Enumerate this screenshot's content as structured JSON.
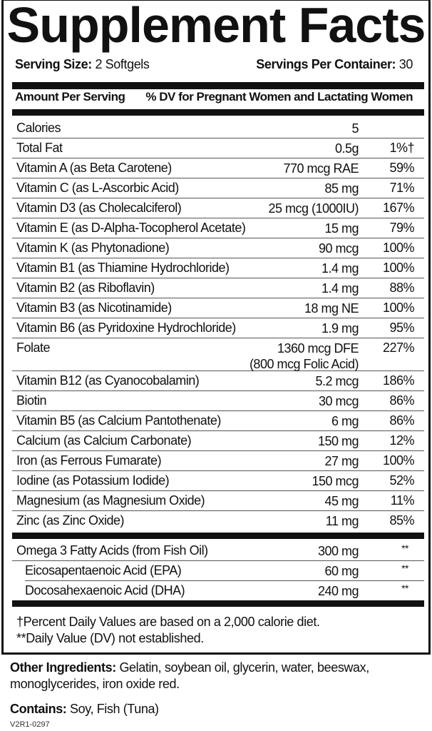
{
  "title": "Supplement Facts",
  "serving_size": {
    "label": "Serving Size:",
    "value": "2 Softgels"
  },
  "servings_per_container": {
    "label": "Servings Per Container:",
    "value": "30"
  },
  "header": {
    "amount": "Amount Per Serving",
    "dv": "% DV for Pregnant Women and Lactating Women"
  },
  "nutrients": [
    {
      "name": "Calories",
      "amount": "5",
      "dv": ""
    },
    {
      "name": "Total Fat",
      "amount": "0.5g",
      "dv": "1%†"
    },
    {
      "name": "Vitamin A (as Beta Carotene)",
      "amount": "770 mcg RAE",
      "dv": "59%"
    },
    {
      "name": "Vitamin C (as L-Ascorbic Acid)",
      "amount": "85 mg",
      "dv": "71%"
    },
    {
      "name": "Vitamin D3 (as Cholecalciferol)",
      "amount": "25 mcg (1000IU)",
      "dv": "167%"
    },
    {
      "name": "Vitamin E (as D-Alpha-Tocopherol Acetate)",
      "amount": "15 mg",
      "dv": "79%"
    },
    {
      "name": "Vitamin K (as Phytonadione)",
      "amount": "90 mcg",
      "dv": "100%"
    },
    {
      "name": "Vitamin B1 (as Thiamine Hydrochloride)",
      "amount": "1.4 mg",
      "dv": "100%"
    },
    {
      "name": "Vitamin B2 (as Riboflavin)",
      "amount": "1.4 mg",
      "dv": "88%"
    },
    {
      "name": "Vitamin B3 (as Nicotinamide)",
      "amount": "18 mg NE",
      "dv": "100%"
    },
    {
      "name": "Vitamin B6 (as Pyridoxine Hydrochloride)",
      "amount": "1.9 mg",
      "dv": "95%"
    },
    {
      "name": "Folate",
      "amount": "1360 mcg DFE",
      "amount2": "(800 mcg Folic Acid)",
      "dv": "227%"
    },
    {
      "name": "Vitamin B12 (as Cyanocobalamin)",
      "amount": "5.2 mcg",
      "dv": "186%"
    },
    {
      "name": "Biotin",
      "amount": "30 mcg",
      "dv": "86%"
    },
    {
      "name": "Vitamin B5 (as Calcium Pantothenate)",
      "amount": "6 mg",
      "dv": "86%"
    },
    {
      "name": "Calcium (as Calcium Carbonate)",
      "amount": "150 mg",
      "dv": "12%"
    },
    {
      "name": "Iron (as Ferrous Fumarate)",
      "amount": "27 mg",
      "dv": "100%"
    },
    {
      "name": "Iodine (as Potassium Iodide)",
      "amount": "150 mcg",
      "dv": "52%"
    },
    {
      "name": "Magnesium (as Magnesium Oxide)",
      "amount": "45 mg",
      "dv": "11%"
    },
    {
      "name": "Zinc (as Zinc Oxide)",
      "amount": "11 mg",
      "dv": "85%"
    }
  ],
  "fatty_acids": [
    {
      "name": "Omega 3 Fatty Acids (from Fish Oil)",
      "amount": "300 mg",
      "dv": "**"
    },
    {
      "name": "Eicosapentaenoic Acid (EPA)",
      "amount": "60 mg",
      "dv": "**"
    },
    {
      "name": "Docosahexaenoic Acid (DHA)",
      "amount": "240 mg",
      "dv": "**"
    }
  ],
  "footnotes": [
    "†Percent Daily Values are based on a 2,000 calorie diet.",
    "**Daily Value (DV) not established."
  ],
  "other_ingredients": {
    "label": "Other Ingredients:",
    "line1": "Gelatin, soybean oil, glycerin, water, beeswax,",
    "line2": "monoglycerides, iron oxide red."
  },
  "contains": {
    "label": "Contains:",
    "value": "Soy, Fish (Tuna)"
  },
  "code": "V2R1-0297"
}
